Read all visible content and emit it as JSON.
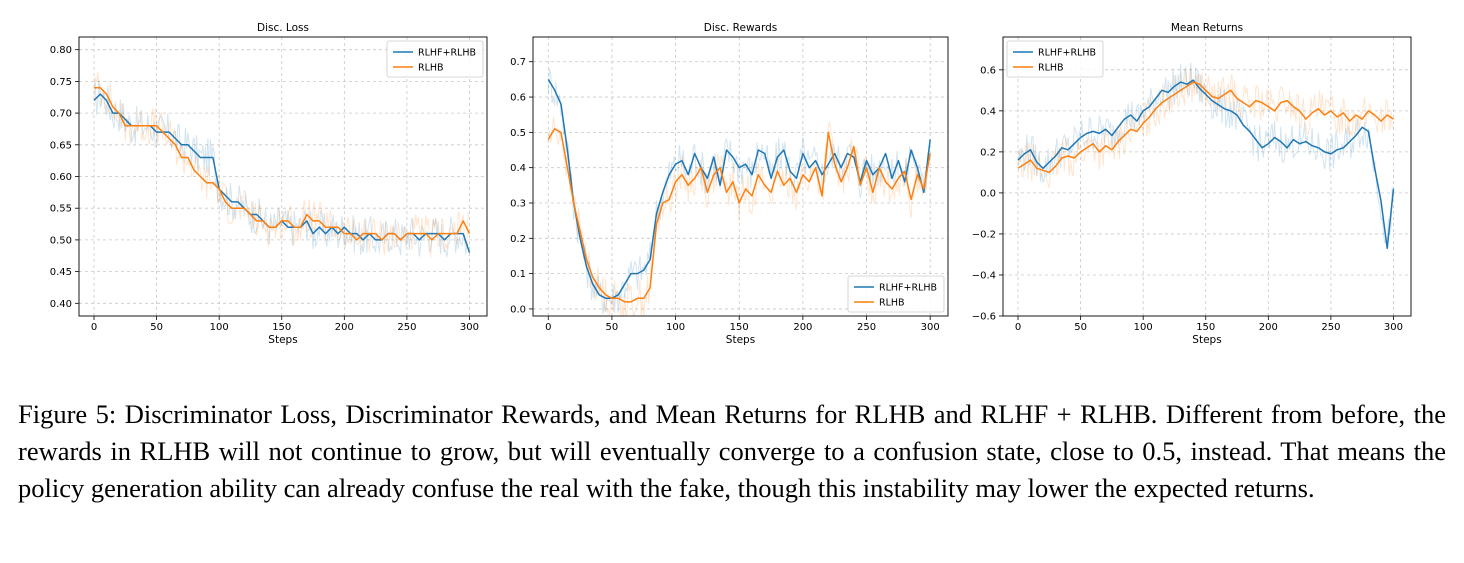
{
  "figure": {
    "caption": "Figure 5: Discriminator Loss, Discriminator Rewards, and Mean Returns for RLHB and RLHF + RLHB. Different from before, the rewards in RLHB will not continue to grow, but will eventually converge to a confusion state, close to 0.5, instead. That means the policy generation ability can already confuse the real with the fake, though this instability may lower the expected returns."
  },
  "colors": {
    "rlhf_rlhb": "#1f77b4",
    "rlhb": "#ff7f0e",
    "grid": "#c8c8c8"
  },
  "chart_data": [
    {
      "type": "line",
      "title": "Disc. Loss",
      "xlabel": "Steps",
      "ylabel": "",
      "xlim": [
        -12,
        314
      ],
      "ylim": [
        0.38,
        0.82
      ],
      "xticks": [
        0,
        50,
        100,
        150,
        200,
        250,
        300
      ],
      "yticks": [
        0.4,
        0.45,
        0.5,
        0.55,
        0.6,
        0.65,
        0.7,
        0.75,
        0.8
      ],
      "ytick_decimals": 2,
      "grid": true,
      "legend": "top-right",
      "series": [
        {
          "name": "RLHF+RLHB",
          "color": "#1f77b4",
          "x": [
            0,
            5,
            10,
            15,
            20,
            25,
            30,
            35,
            40,
            45,
            50,
            55,
            60,
            65,
            70,
            75,
            80,
            85,
            90,
            95,
            100,
            105,
            110,
            115,
            120,
            125,
            130,
            135,
            140,
            145,
            150,
            155,
            160,
            165,
            170,
            175,
            180,
            185,
            190,
            195,
            200,
            205,
            210,
            215,
            220,
            225,
            230,
            235,
            240,
            245,
            250,
            255,
            260,
            265,
            270,
            275,
            280,
            285,
            290,
            295,
            300
          ],
          "y": [
            0.72,
            0.73,
            0.72,
            0.7,
            0.7,
            0.69,
            0.68,
            0.68,
            0.68,
            0.68,
            0.67,
            0.67,
            0.67,
            0.66,
            0.65,
            0.65,
            0.64,
            0.63,
            0.63,
            0.63,
            0.58,
            0.57,
            0.56,
            0.56,
            0.55,
            0.54,
            0.54,
            0.53,
            0.52,
            0.52,
            0.53,
            0.52,
            0.52,
            0.52,
            0.53,
            0.51,
            0.52,
            0.51,
            0.52,
            0.51,
            0.52,
            0.51,
            0.51,
            0.5,
            0.51,
            0.5,
            0.5,
            0.51,
            0.51,
            0.5,
            0.51,
            0.51,
            0.5,
            0.51,
            0.51,
            0.51,
            0.5,
            0.51,
            0.51,
            0.51,
            0.48
          ]
        },
        {
          "name": "RLHB",
          "color": "#ff7f0e",
          "x": [
            0,
            5,
            10,
            15,
            20,
            25,
            30,
            35,
            40,
            45,
            50,
            55,
            60,
            65,
            70,
            75,
            80,
            85,
            90,
            95,
            100,
            105,
            110,
            115,
            120,
            125,
            130,
            135,
            140,
            145,
            150,
            155,
            160,
            165,
            170,
            175,
            180,
            185,
            190,
            195,
            200,
            205,
            210,
            215,
            220,
            225,
            230,
            235,
            240,
            245,
            250,
            255,
            260,
            265,
            270,
            275,
            280,
            285,
            290,
            295,
            300
          ],
          "y": [
            0.74,
            0.74,
            0.73,
            0.71,
            0.7,
            0.68,
            0.68,
            0.68,
            0.68,
            0.68,
            0.68,
            0.67,
            0.66,
            0.65,
            0.63,
            0.63,
            0.61,
            0.6,
            0.59,
            0.59,
            0.58,
            0.56,
            0.55,
            0.55,
            0.55,
            0.54,
            0.53,
            0.53,
            0.52,
            0.52,
            0.53,
            0.53,
            0.52,
            0.52,
            0.54,
            0.53,
            0.53,
            0.52,
            0.52,
            0.52,
            0.51,
            0.51,
            0.5,
            0.51,
            0.51,
            0.51,
            0.5,
            0.51,
            0.51,
            0.5,
            0.51,
            0.51,
            0.51,
            0.51,
            0.5,
            0.51,
            0.51,
            0.51,
            0.51,
            0.53,
            0.51
          ]
        }
      ]
    },
    {
      "type": "line",
      "title": "Disc. Rewards",
      "xlabel": "Steps",
      "ylabel": "",
      "xlim": [
        -12,
        314
      ],
      "ylim": [
        -0.02,
        0.77
      ],
      "xticks": [
        0,
        50,
        100,
        150,
        200,
        250,
        300
      ],
      "yticks": [
        0.0,
        0.1,
        0.2,
        0.3,
        0.4,
        0.5,
        0.6,
        0.7
      ],
      "ytick_decimals": 1,
      "grid": true,
      "legend": "bottom-right",
      "series": [
        {
          "name": "RLHF+RLHB",
          "color": "#1f77b4",
          "x": [
            0,
            5,
            10,
            15,
            20,
            25,
            30,
            35,
            40,
            45,
            50,
            55,
            60,
            65,
            70,
            75,
            80,
            85,
            90,
            95,
            100,
            105,
            110,
            115,
            120,
            125,
            130,
            135,
            140,
            145,
            150,
            155,
            160,
            165,
            170,
            175,
            180,
            185,
            190,
            195,
            200,
            205,
            210,
            215,
            220,
            225,
            230,
            235,
            240,
            245,
            250,
            255,
            260,
            265,
            270,
            275,
            280,
            285,
            290,
            295,
            300
          ],
          "y": [
            0.65,
            0.62,
            0.58,
            0.45,
            0.3,
            0.2,
            0.12,
            0.07,
            0.04,
            0.03,
            0.03,
            0.04,
            0.07,
            0.1,
            0.1,
            0.11,
            0.14,
            0.27,
            0.33,
            0.38,
            0.41,
            0.42,
            0.38,
            0.44,
            0.4,
            0.37,
            0.43,
            0.35,
            0.45,
            0.43,
            0.4,
            0.41,
            0.38,
            0.45,
            0.44,
            0.37,
            0.43,
            0.45,
            0.39,
            0.37,
            0.44,
            0.4,
            0.42,
            0.38,
            0.41,
            0.44,
            0.4,
            0.44,
            0.43,
            0.36,
            0.42,
            0.38,
            0.4,
            0.44,
            0.37,
            0.42,
            0.36,
            0.45,
            0.4,
            0.33,
            0.48
          ]
        },
        {
          "name": "RLHB",
          "color": "#ff7f0e",
          "x": [
            0,
            5,
            10,
            15,
            20,
            25,
            30,
            35,
            40,
            45,
            50,
            55,
            60,
            65,
            70,
            75,
            80,
            85,
            90,
            95,
            100,
            105,
            110,
            115,
            120,
            125,
            130,
            135,
            140,
            145,
            150,
            155,
            160,
            165,
            170,
            175,
            180,
            185,
            190,
            195,
            200,
            205,
            210,
            215,
            220,
            225,
            230,
            235,
            240,
            245,
            250,
            255,
            260,
            265,
            270,
            275,
            280,
            285,
            290,
            295,
            300
          ],
          "y": [
            0.48,
            0.51,
            0.5,
            0.4,
            0.3,
            0.22,
            0.14,
            0.09,
            0.06,
            0.04,
            0.03,
            0.03,
            0.02,
            0.02,
            0.03,
            0.03,
            0.06,
            0.24,
            0.3,
            0.31,
            0.36,
            0.38,
            0.35,
            0.37,
            0.4,
            0.33,
            0.38,
            0.4,
            0.33,
            0.36,
            0.3,
            0.34,
            0.32,
            0.38,
            0.35,
            0.33,
            0.39,
            0.35,
            0.37,
            0.33,
            0.38,
            0.36,
            0.4,
            0.32,
            0.5,
            0.41,
            0.36,
            0.4,
            0.46,
            0.35,
            0.4,
            0.33,
            0.4,
            0.36,
            0.34,
            0.37,
            0.39,
            0.31,
            0.38,
            0.34,
            0.44
          ]
        }
      ]
    },
    {
      "type": "line",
      "title": "Mean Returns",
      "xlabel": "Steps",
      "ylabel": "",
      "xlim": [
        -12,
        314
      ],
      "ylim": [
        -0.6,
        0.76
      ],
      "xticks": [
        0,
        50,
        100,
        150,
        200,
        250,
        300
      ],
      "yticks": [
        -0.6,
        -0.4,
        -0.2,
        0.0,
        0.2,
        0.4,
        0.6
      ],
      "ytick_decimals": 1,
      "grid": true,
      "legend": "top-left",
      "series": [
        {
          "name": "RLHF+RLHB",
          "color": "#1f77b4",
          "x": [
            0,
            5,
            10,
            15,
            20,
            25,
            30,
            35,
            40,
            45,
            50,
            55,
            60,
            65,
            70,
            75,
            80,
            85,
            90,
            95,
            100,
            105,
            110,
            115,
            120,
            125,
            130,
            135,
            140,
            145,
            150,
            155,
            160,
            165,
            170,
            175,
            180,
            185,
            190,
            195,
            200,
            205,
            210,
            215,
            220,
            225,
            230,
            235,
            240,
            245,
            250,
            255,
            260,
            265,
            270,
            275,
            280,
            285,
            290,
            295,
            300
          ],
          "y": [
            0.16,
            0.19,
            0.21,
            0.15,
            0.12,
            0.15,
            0.18,
            0.22,
            0.21,
            0.24,
            0.27,
            0.29,
            0.3,
            0.29,
            0.31,
            0.28,
            0.32,
            0.36,
            0.38,
            0.35,
            0.4,
            0.42,
            0.46,
            0.5,
            0.49,
            0.52,
            0.54,
            0.53,
            0.55,
            0.51,
            0.48,
            0.45,
            0.43,
            0.41,
            0.4,
            0.38,
            0.33,
            0.3,
            0.26,
            0.22,
            0.24,
            0.27,
            0.25,
            0.22,
            0.26,
            0.24,
            0.25,
            0.23,
            0.22,
            0.2,
            0.19,
            0.21,
            0.22,
            0.25,
            0.28,
            0.32,
            0.3,
            0.12,
            -0.04,
            -0.27,
            0.02
          ]
        },
        {
          "name": "RLHB",
          "color": "#ff7f0e",
          "x": [
            0,
            5,
            10,
            15,
            20,
            25,
            30,
            35,
            40,
            45,
            50,
            55,
            60,
            65,
            70,
            75,
            80,
            85,
            90,
            95,
            100,
            105,
            110,
            115,
            120,
            125,
            130,
            135,
            140,
            145,
            150,
            155,
            160,
            165,
            170,
            175,
            180,
            185,
            190,
            195,
            200,
            205,
            210,
            215,
            220,
            225,
            230,
            235,
            240,
            245,
            250,
            255,
            260,
            265,
            270,
            275,
            280,
            285,
            290,
            295,
            300
          ],
          "y": [
            0.12,
            0.14,
            0.16,
            0.12,
            0.11,
            0.1,
            0.13,
            0.17,
            0.18,
            0.17,
            0.2,
            0.22,
            0.24,
            0.2,
            0.23,
            0.21,
            0.25,
            0.28,
            0.31,
            0.3,
            0.34,
            0.37,
            0.41,
            0.44,
            0.46,
            0.48,
            0.5,
            0.52,
            0.54,
            0.53,
            0.5,
            0.47,
            0.46,
            0.48,
            0.5,
            0.46,
            0.44,
            0.42,
            0.45,
            0.44,
            0.42,
            0.4,
            0.44,
            0.45,
            0.42,
            0.4,
            0.36,
            0.39,
            0.41,
            0.38,
            0.4,
            0.37,
            0.39,
            0.35,
            0.38,
            0.36,
            0.4,
            0.38,
            0.35,
            0.38,
            0.36
          ]
        }
      ]
    }
  ]
}
